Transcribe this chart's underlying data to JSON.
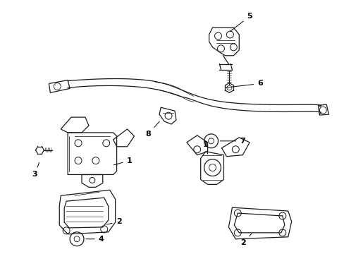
{
  "background_color": "#ffffff",
  "line_color": "#1a1a1a",
  "figsize": [
    4.89,
    3.6
  ],
  "dpi": 100,
  "lw": 0.9
}
